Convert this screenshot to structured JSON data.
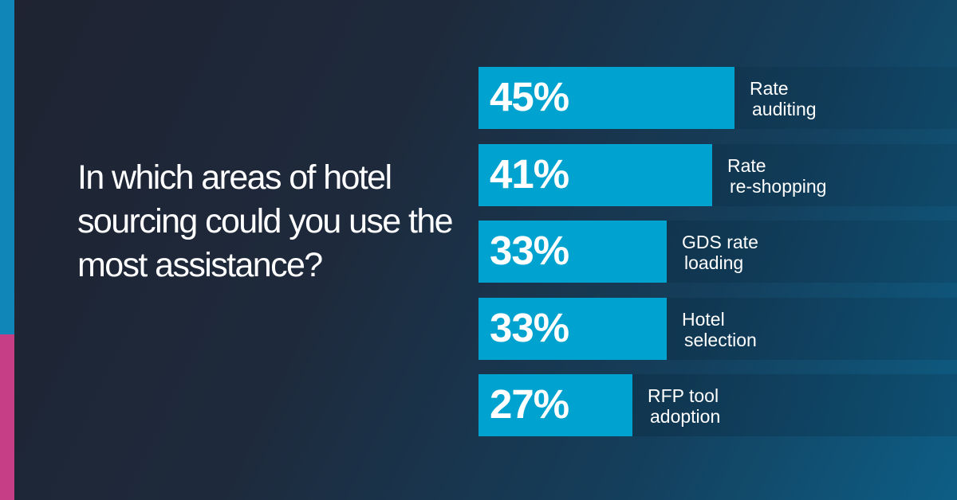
{
  "colors": {
    "accent_top": "#0f86b7",
    "accent_bottom": "#c63f86",
    "bar": "#00a3cf",
    "text": "#ffffff"
  },
  "question": "In which areas of hotel sourcing could you use the most assistance?",
  "chart_data": {
    "type": "bar",
    "orientation": "horizontal",
    "categories": [
      "Rate auditing",
      "Rate re-shopping",
      "GDS rate loading",
      "Hotel selection",
      "RFP tool adoption"
    ],
    "category_lines": [
      [
        "Rate",
        "auditing"
      ],
      [
        "Rate",
        "re-shopping"
      ],
      [
        "GDS rate",
        "loading"
      ],
      [
        "Hotel",
        "selection"
      ],
      [
        "RFP tool",
        "adoption"
      ]
    ],
    "values": [
      45,
      41,
      33,
      33,
      27
    ],
    "value_labels": [
      "45%",
      "41%",
      "33%",
      "33%",
      "27%"
    ],
    "title": "",
    "xlabel": "",
    "ylabel": "",
    "xlim": [
      0,
      84
    ],
    "unit": "%",
    "grid": false,
    "legend": "none"
  }
}
